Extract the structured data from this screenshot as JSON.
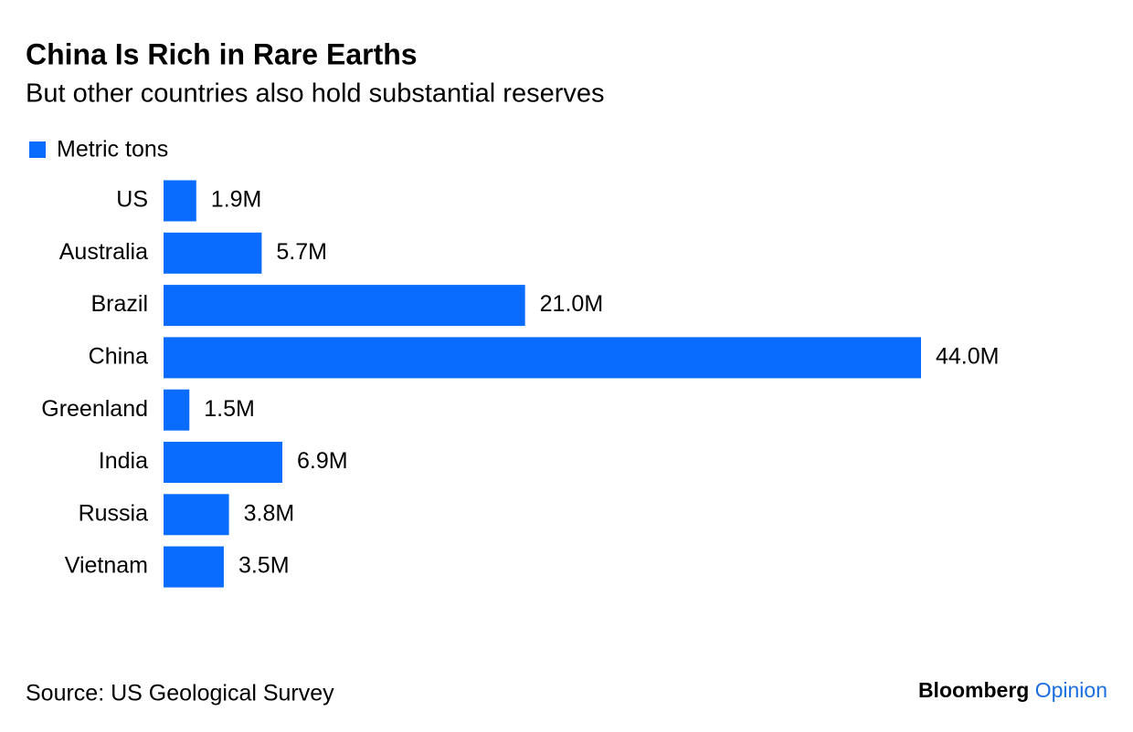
{
  "chart_data": {
    "type": "bar",
    "orientation": "horizontal",
    "title": "China Is Rich in Rare Earths",
    "subtitle": "But other countries also hold substantial reserves",
    "categories": [
      "US",
      "Australia",
      "Brazil",
      "China",
      "Greenland",
      "India",
      "Russia",
      "Vietnam"
    ],
    "series": [
      {
        "name": "Metric tons",
        "color": "#0a6cff",
        "values": [
          1900000,
          5700000,
          21000000,
          44000000,
          1500000,
          6900000,
          3800000,
          3500000
        ],
        "value_labels": [
          "1.9M",
          "5.7M",
          "21.0M",
          "44.0M",
          "1.5M",
          "6.9M",
          "3.8M",
          "3.5M"
        ]
      }
    ],
    "legend": "top-left",
    "source": "Source: US Geological Survey",
    "brand": {
      "name": "Bloomberg",
      "product": "Opinion",
      "product_color": "#1a6ee0"
    }
  }
}
